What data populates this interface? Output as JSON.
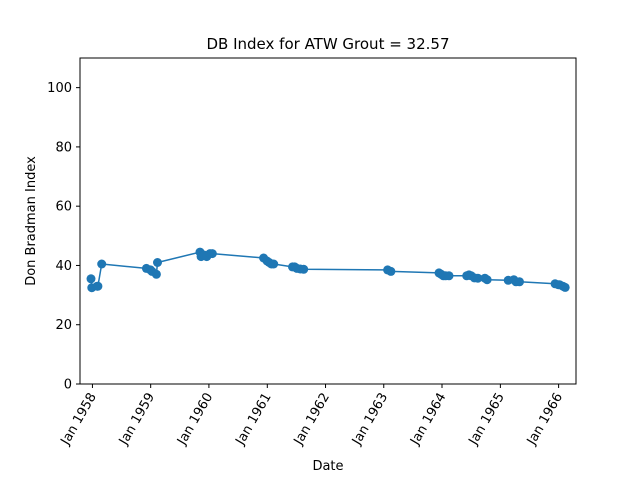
{
  "chart_data": {
    "type": "line",
    "title": "DB Index for ATW Grout = 32.57",
    "xlabel": "Date",
    "ylabel": "Don Bradman Index",
    "ylim": [
      0,
      110
    ],
    "yticks": [
      "0",
      "20",
      "40",
      "60",
      "80",
      "100"
    ],
    "xlim": [
      "1957-10-15",
      "1966-04-20"
    ],
    "xticks": [
      {
        "date": "1958-01-01",
        "label": "Jan 1958"
      },
      {
        "date": "1959-01-01",
        "label": "Jan 1959"
      },
      {
        "date": "1960-01-01",
        "label": "Jan 1960"
      },
      {
        "date": "1961-01-01",
        "label": "Jan 1961"
      },
      {
        "date": "1962-01-01",
        "label": "Jan 1962"
      },
      {
        "date": "1963-01-01",
        "label": "Jan 1963"
      },
      {
        "date": "1964-01-01",
        "label": "Jan 1964"
      },
      {
        "date": "1965-01-01",
        "label": "Jan 1965"
      },
      {
        "date": "1966-01-01",
        "label": "Jan 1966"
      }
    ],
    "grid": false,
    "color": "#1f77b4",
    "series": [
      {
        "x": [
          "1957-12-23",
          "1957-12-28",
          "1958-01-31",
          "1958-02-04",
          "1958-02-28",
          "1958-12-05",
          "1958-12-31",
          "1959-01-09",
          "1959-02-06",
          "1959-02-13",
          "1959-11-06",
          "1959-11-13",
          "1959-12-04",
          "1959-12-18",
          "1960-01-08",
          "1960-01-22",
          "1960-12-09",
          "1960-12-30",
          "1961-01-13",
          "1961-01-27",
          "1961-02-10",
          "1961-06-08",
          "1961-06-22",
          "1961-07-06",
          "1961-07-27",
          "1961-08-17",
          "1963-01-25",
          "1963-02-15",
          "1963-12-13",
          "1963-12-27",
          "1964-01-10",
          "1964-01-24",
          "1964-02-14",
          "1964-06-04",
          "1964-06-18",
          "1964-07-02",
          "1964-07-23",
          "1964-08-13",
          "1964-09-26",
          "1964-10-10",
          "1965-02-19",
          "1965-03-26",
          "1965-04-09",
          "1965-05-01",
          "1965-12-10",
          "1965-12-30",
          "1966-01-07",
          "1966-01-28",
          "1966-02-11"
        ],
        "y": [
          35.5,
          32.5,
          33.0,
          33.0,
          40.5,
          39.0,
          38.5,
          38.0,
          37.0,
          41.0,
          44.5,
          43.0,
          43.5,
          43.0,
          44.0,
          44.0,
          42.5,
          41.5,
          41.0,
          40.5,
          40.5,
          39.5,
          39.5,
          39.0,
          38.8,
          38.7,
          38.5,
          38.0,
          37.5,
          37.0,
          36.5,
          36.5,
          36.5,
          36.5,
          36.8,
          36.5,
          35.8,
          35.7,
          35.7,
          35.2,
          35.0,
          35.2,
          34.5,
          34.5,
          33.8,
          33.5,
          33.5,
          33.0,
          32.6
        ]
      }
    ]
  }
}
